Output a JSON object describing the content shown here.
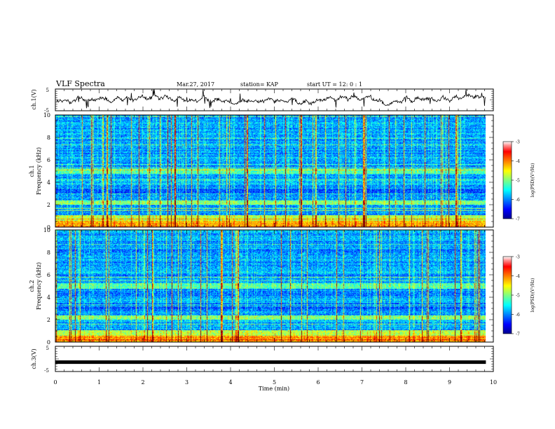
{
  "header": {
    "title": "VLF Spectra",
    "date": "Mar.27, 2017",
    "station": "station= KAP",
    "start": "start  UT =   12: 0  : 1"
  },
  "chart_data": {
    "type": "heatmap",
    "time_axis": {
      "label": "Time  (min)",
      "range": [
        0,
        10
      ],
      "ticks": [
        "0",
        "1",
        "2",
        "3",
        "4",
        "5",
        "6",
        "7",
        "8",
        "9",
        "10"
      ],
      "data_end": 9.83
    },
    "panels": [
      {
        "id": "ch1-waveform",
        "type": "line",
        "ylabel": "ch.1(V)",
        "ylim": [
          -5,
          5
        ],
        "ticks": [
          "5",
          "-5"
        ]
      },
      {
        "id": "ch1-spectrogram",
        "type": "heatmap",
        "ylabel_top": "ch.1",
        "ylabel": "Frequency  (kHz)",
        "ylim": [
          0,
          10
        ],
        "ticks": [
          "0",
          "2",
          "4",
          "6",
          "8",
          "10"
        ],
        "colorbar": {
          "label": "log(PSD)(V²/Hz)",
          "range": [
            -7,
            -3
          ],
          "ticks": [
            "-3",
            "-4",
            "-5",
            "-6",
            "-7"
          ]
        }
      },
      {
        "id": "ch2-spectrogram",
        "type": "heatmap",
        "ylabel_top": "ch.2",
        "ylabel": "Frequency  (kHz)",
        "ylim": [
          0,
          10
        ],
        "ticks": [
          "0",
          "2",
          "4",
          "6",
          "8",
          "10"
        ],
        "colorbar": {
          "label": "log(PSD)(V²/Hz)",
          "range": [
            -7,
            -3
          ],
          "ticks": [
            "-3",
            "-4",
            "-5",
            "-6",
            "-7"
          ]
        }
      },
      {
        "id": "ch3-waveform",
        "type": "line",
        "ylabel": "ch.3(V)",
        "ylim": [
          -5,
          5
        ],
        "ticks": [
          "5",
          "-5"
        ],
        "constant_value": -1.3
      }
    ]
  }
}
